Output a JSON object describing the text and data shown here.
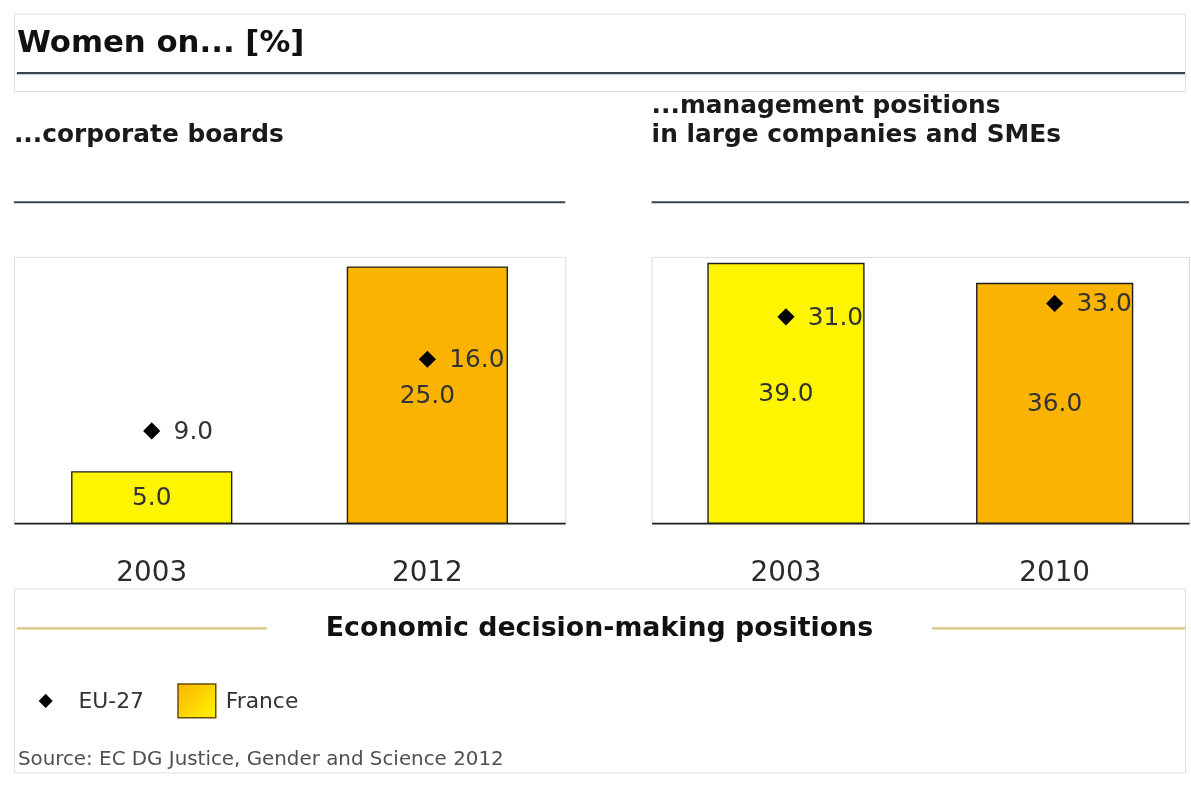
{
  "chart_data": [
    {
      "type": "bar",
      "title": "Women on... [%]",
      "subtitle": "...corporate boards",
      "categories": [
        "2003",
        "2012"
      ],
      "series": [
        {
          "name": "EU-27",
          "type": "scatter",
          "color": "#000000",
          "values": [
            9.0,
            16.0
          ],
          "value_labels": [
            "9.0",
            "16.0"
          ]
        },
        {
          "name": "France",
          "colors": [
            "#fff500",
            "#fab400"
          ],
          "values": [
            5.0,
            25.0
          ],
          "value_labels": [
            "5.0",
            "25.0"
          ]
        }
      ],
      "ylim": [
        0,
        26
      ],
      "tick_labels": "x",
      "marker": "diamond",
      "legend": "bottom left",
      "annotations": [
        "Economic decision-making positions",
        "Source: EC DG Justice, Gender and Science 2012"
      ]
    },
    {
      "type": "bar",
      "subtitle": "...management positions\nin large companies and SMEs",
      "categories": [
        "2003",
        "2010"
      ],
      "series": [
        {
          "name": "EU-27",
          "type": "scatter",
          "color": "#000000",
          "values": [
            31.0,
            33.0
          ],
          "value_labels": [
            "31.0",
            "33.0"
          ]
        },
        {
          "name": "France",
          "colors": [
            "#fff500",
            "#fab400"
          ],
          "values": [
            39.0,
            36.0
          ],
          "value_labels": [
            "39.0",
            "36.0"
          ]
        }
      ],
      "ylim": [
        0,
        40
      ],
      "tick_labels": "x",
      "marker": "diamond"
    }
  ]
}
